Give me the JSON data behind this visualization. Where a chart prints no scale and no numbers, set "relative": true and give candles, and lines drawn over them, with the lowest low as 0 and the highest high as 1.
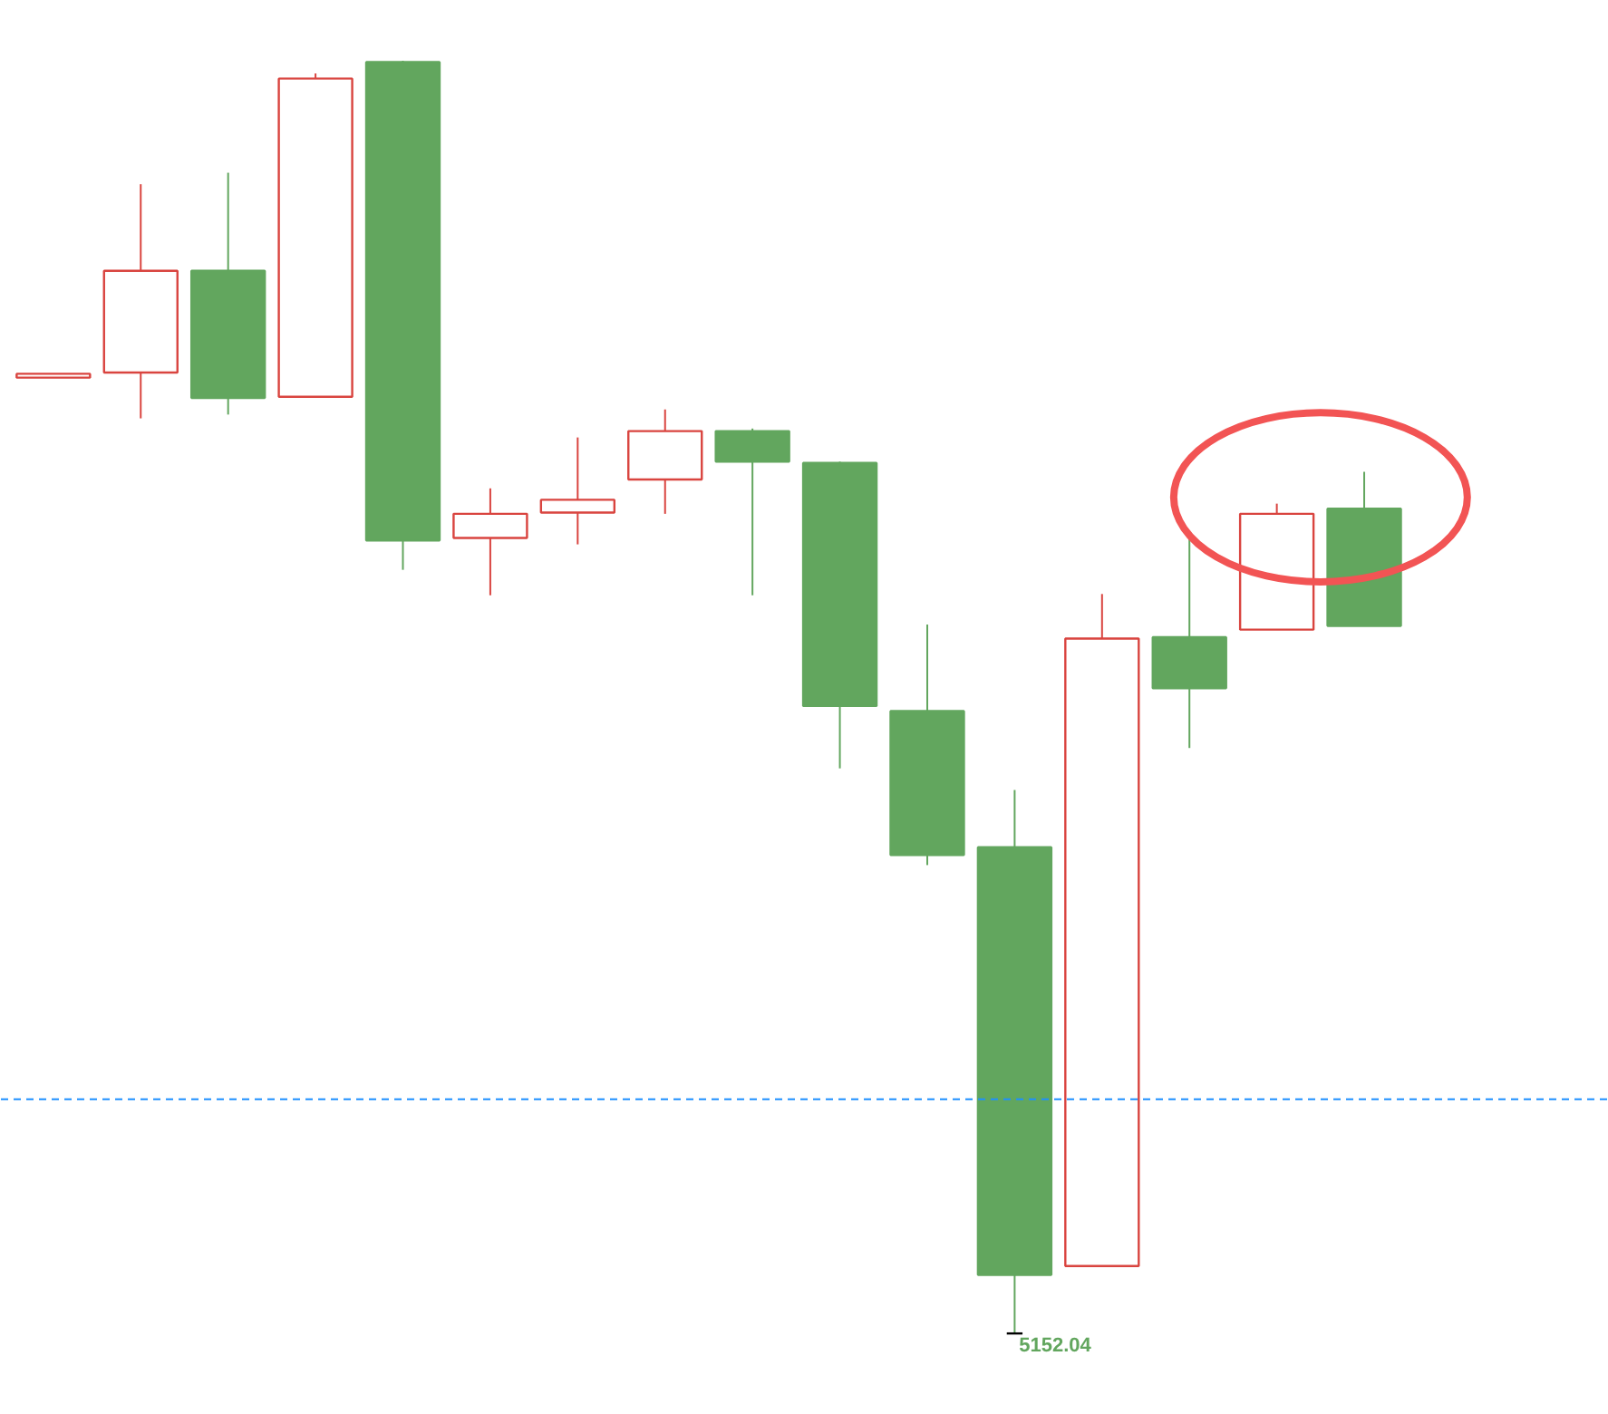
{
  "chart_data": {
    "type": "candlestick",
    "relative": true,
    "tick_labels": false,
    "categories": [
      null,
      null,
      null,
      null,
      null,
      null,
      null,
      null,
      null,
      null,
      null,
      null,
      null,
      null,
      null,
      null
    ],
    "ohlc": [
      [
        0.751,
        0.754,
        0.751,
        0.754
      ],
      [
        0.755,
        0.903,
        0.719,
        0.835
      ],
      [
        0.835,
        0.912,
        0.722,
        0.735
      ],
      [
        0.736,
        0.99,
        0.736,
        0.986
      ],
      [
        0.999,
        1,
        0.6,
        0.623
      ],
      [
        0.625,
        0.664,
        0.58,
        0.644
      ],
      [
        0.645,
        0.704,
        0.62,
        0.655
      ],
      [
        0.671,
        0.726,
        0.644,
        0.709
      ],
      [
        0.709,
        0.711,
        0.58,
        0.685
      ],
      [
        0.684,
        0.685,
        0.444,
        0.493
      ],
      [
        0.489,
        0.557,
        0.368,
        0.376
      ],
      [
        0.382,
        0.427,
        0,
        0.046
      ],
      [
        0.053,
        0.581,
        0.053,
        0.546
      ],
      [
        0.547,
        0.628,
        0.46,
        0.507
      ],
      [
        0.553,
        0.652,
        0.553,
        0.644
      ],
      [
        0.648,
        0.677,
        0.556,
        0.556
      ]
    ],
    "colors": [
      "#d9443f",
      "#d9443f",
      "#62a65e",
      "#d9443f",
      "#62a65e",
      "#d9443f",
      "#d9443f",
      "#d9443f",
      "#62a65e",
      "#62a65e",
      "#62a65e",
      "#62a65e",
      "#d9443f",
      "#62a65e",
      "#d9443f",
      "#62a65e"
    ],
    "ref_lines": [
      {
        "axis": "y",
        "value": 0.184,
        "color": "#1e90ff",
        "line_style": "dashed"
      }
    ],
    "annotations": [
      "5152.04"
    ]
  }
}
